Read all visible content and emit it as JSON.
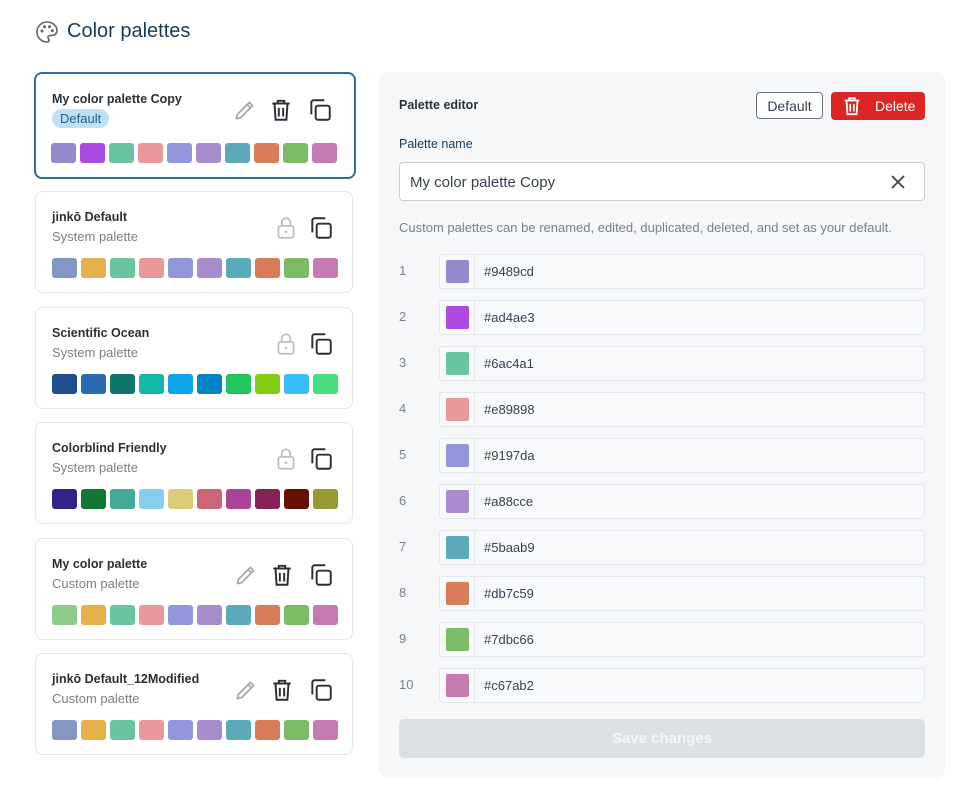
{
  "header": {
    "title": "Color palettes"
  },
  "palettes": [
    {
      "name": "My color palette Copy",
      "badge": "Default",
      "selected": true,
      "locked": false,
      "colors": [
        "#9489cd",
        "#ad4ae3",
        "#6ac4a1",
        "#e89898",
        "#9197da",
        "#a88cce",
        "#5baab9",
        "#db7c59",
        "#7dbc66",
        "#c67ab2"
      ]
    },
    {
      "name": "jinkō Default",
      "subtitle": "System palette",
      "locked": true,
      "colors": [
        "#8396c4",
        "#e6b04a",
        "#6ac4a1",
        "#e89898",
        "#9197da",
        "#a88cce",
        "#5baab9",
        "#db7c59",
        "#7dbc66",
        "#c67ab2"
      ]
    },
    {
      "name": "Scientific Ocean",
      "subtitle": "System palette",
      "locked": true,
      "colors": [
        "#1e4e8c",
        "#2a6ab5",
        "#0f766e",
        "#14b8a6",
        "#0ea5e9",
        "#0284c7",
        "#22c55e",
        "#84cc16",
        "#38bdf8",
        "#4ade80"
      ]
    },
    {
      "name": "Colorblind Friendly",
      "subtitle": "System palette",
      "locked": true,
      "colors": [
        "#332288",
        "#117733",
        "#44aa99",
        "#88ccee",
        "#ddcc77",
        "#cc6677",
        "#aa4499",
        "#882255",
        "#661100",
        "#999933"
      ]
    },
    {
      "name": "My color palette",
      "subtitle": "Custom palette",
      "locked": false,
      "colors": [
        "#8ecb8a",
        "#e6b04a",
        "#6ac4a1",
        "#e89898",
        "#9197da",
        "#a88cce",
        "#5baab9",
        "#db7c59",
        "#7dbc66",
        "#c67ab2"
      ]
    },
    {
      "name": "jinkō Default_12Modified",
      "subtitle": "Custom palette",
      "locked": false,
      "colors": [
        "#8396c4",
        "#e6b04a",
        "#6ac4a1",
        "#e89898",
        "#9197da",
        "#a88cce",
        "#5baab9",
        "#db7c59",
        "#7dbc66",
        "#c67ab2"
      ]
    }
  ],
  "editor": {
    "title": "Palette editor",
    "default_button": "Default",
    "delete_button": "Delete",
    "name_label": "Palette name",
    "name_value": "My color palette Copy",
    "hint": "Custom palettes can be renamed, edited, duplicated, deleted, and set as your default.",
    "colors": [
      {
        "index": 1,
        "hex": "#9489cd"
      },
      {
        "index": 2,
        "hex": "#ad4ae3"
      },
      {
        "index": 3,
        "hex": "#6ac4a1"
      },
      {
        "index": 4,
        "hex": "#e89898"
      },
      {
        "index": 5,
        "hex": "#9197da"
      },
      {
        "index": 6,
        "hex": "#a88cce"
      },
      {
        "index": 7,
        "hex": "#5baab9"
      },
      {
        "index": 8,
        "hex": "#db7c59"
      },
      {
        "index": 9,
        "hex": "#7dbc66"
      },
      {
        "index": 10,
        "hex": "#c67ab2"
      }
    ],
    "save_button": "Save changes"
  }
}
